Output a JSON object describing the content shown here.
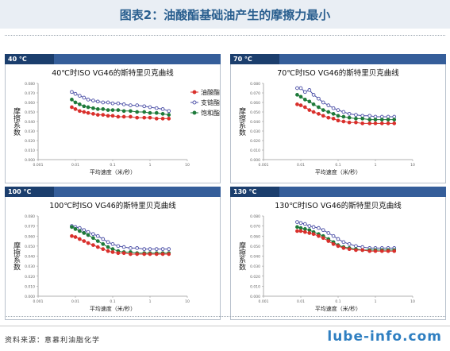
{
  "header": {
    "title": "图表2：油酸酯基础油产生的摩擦力最小"
  },
  "footer": {
    "source": "资料来源：意慕利油脂化学",
    "brand": "lube-info.com"
  },
  "colors": {
    "oleate": "#d9302c",
    "branched": "#4b4fa6",
    "saturated": "#1e7a3a"
  },
  "chart_data": [
    {
      "type": "line",
      "panel_label": "40 °C",
      "title": "40℃时ISO VG46的斯特里贝克曲线",
      "xlabel": "平均速度（米/秒）",
      "ylabel": "摩擦系数",
      "x_scale": "log",
      "xlim": [
        0.001,
        10
      ],
      "ylim": [
        0,
        0.08
      ],
      "x_ticks": [
        "0.001",
        "0.01",
        "0.1",
        "1",
        "10"
      ],
      "y_ticks": [
        "0.000",
        "0.010",
        "0.020",
        "0.030",
        "0.040",
        "0.050",
        "0.060",
        "0.070",
        "0.080"
      ],
      "legend": [
        "油酸酯",
        "支链酯",
        "饱和酯"
      ],
      "x": [
        0.008,
        0.01,
        0.013,
        0.017,
        0.022,
        0.03,
        0.04,
        0.055,
        0.075,
        0.1,
        0.14,
        0.2,
        0.3,
        0.45,
        0.7,
        1.0,
        1.5,
        2.2,
        3.2
      ],
      "series": [
        {
          "name": "支链酯",
          "color": "#4b4fa6",
          "values": [
            0.071,
            0.069,
            0.067,
            0.065,
            0.063,
            0.062,
            0.061,
            0.06,
            0.06,
            0.059,
            0.059,
            0.058,
            0.057,
            0.057,
            0.056,
            0.055,
            0.054,
            0.053,
            0.051
          ]
        },
        {
          "name": "饱和酯",
          "color": "#1e7a3a",
          "values": [
            0.063,
            0.06,
            0.058,
            0.056,
            0.055,
            0.054,
            0.053,
            0.053,
            0.052,
            0.052,
            0.052,
            0.051,
            0.051,
            0.05,
            0.05,
            0.049,
            0.049,
            0.048,
            0.047
          ]
        },
        {
          "name": "油酸酯",
          "color": "#d9302c",
          "values": [
            0.055,
            0.053,
            0.051,
            0.05,
            0.049,
            0.048,
            0.047,
            0.047,
            0.046,
            0.046,
            0.045,
            0.045,
            0.045,
            0.044,
            0.044,
            0.044,
            0.043,
            0.043,
            0.043
          ]
        }
      ]
    },
    {
      "type": "line",
      "panel_label": "70 °C",
      "title": "70℃时ISO VG46的斯特里贝克曲线",
      "xlabel": "平均速度（米/秒）",
      "ylabel": "摩擦系数",
      "x_scale": "log",
      "xlim": [
        0.001,
        10
      ],
      "ylim": [
        0,
        0.08
      ],
      "x_ticks": [
        "0.001",
        "0.01",
        "0.1",
        "1",
        "10"
      ],
      "y_ticks": [
        "0.000",
        "0.010",
        "0.020",
        "0.030",
        "0.040",
        "0.050",
        "0.060",
        "0.070",
        "0.080"
      ],
      "legend": [],
      "x": [
        0.008,
        0.01,
        0.013,
        0.017,
        0.022,
        0.03,
        0.04,
        0.055,
        0.075,
        0.1,
        0.14,
        0.2,
        0.3,
        0.45,
        0.7,
        1.0,
        1.5,
        2.2,
        3.2
      ],
      "series": [
        {
          "name": "支链酯",
          "color": "#4b4fa6",
          "values": [
            0.075,
            0.075,
            0.071,
            0.073,
            0.068,
            0.064,
            0.06,
            0.057,
            0.054,
            0.052,
            0.05,
            0.048,
            0.047,
            0.046,
            0.046,
            0.045,
            0.045,
            0.045,
            0.045
          ]
        },
        {
          "name": "饱和酯",
          "color": "#1e7a3a",
          "values": [
            0.068,
            0.066,
            0.063,
            0.061,
            0.058,
            0.055,
            0.052,
            0.05,
            0.048,
            0.046,
            0.045,
            0.044,
            0.043,
            0.043,
            0.042,
            0.042,
            0.042,
            0.042,
            0.042
          ]
        },
        {
          "name": "油酸酯",
          "color": "#d9302c",
          "values": [
            0.058,
            0.057,
            0.055,
            0.052,
            0.05,
            0.048,
            0.046,
            0.044,
            0.043,
            0.041,
            0.04,
            0.039,
            0.039,
            0.038,
            0.038,
            0.038,
            0.038,
            0.038,
            0.038
          ]
        }
      ]
    },
    {
      "type": "line",
      "panel_label": "100 °C",
      "title": "100℃时ISO VG46的斯特里贝克曲线",
      "xlabel": "平均速度（米/秒）",
      "ylabel": "摩擦系数",
      "x_scale": "log",
      "xlim": [
        0.001,
        10
      ],
      "ylim": [
        0,
        0.08
      ],
      "x_ticks": [
        "0.001",
        "0.01",
        "0.1",
        "1",
        "10"
      ],
      "y_ticks": [
        "0.000",
        "0.010",
        "0.020",
        "0.030",
        "0.040",
        "0.050",
        "0.060",
        "0.070",
        "0.080"
      ],
      "legend": [],
      "x": [
        0.008,
        0.01,
        0.013,
        0.017,
        0.022,
        0.03,
        0.04,
        0.055,
        0.075,
        0.1,
        0.14,
        0.2,
        0.3,
        0.45,
        0.7,
        1.0,
        1.5,
        2.2,
        3.2
      ],
      "series": [
        {
          "name": "支链酯",
          "color": "#4b4fa6",
          "values": [
            0.07,
            0.069,
            0.068,
            0.066,
            0.064,
            0.062,
            0.06,
            0.057,
            0.054,
            0.052,
            0.05,
            0.049,
            0.048,
            0.048,
            0.047,
            0.047,
            0.047,
            0.047,
            0.047
          ]
        },
        {
          "name": "饱和酯",
          "color": "#1e7a3a",
          "values": [
            0.069,
            0.067,
            0.065,
            0.063,
            0.061,
            0.058,
            0.055,
            0.052,
            0.049,
            0.047,
            0.045,
            0.044,
            0.044,
            0.043,
            0.043,
            0.043,
            0.043,
            0.043,
            0.043
          ]
        },
        {
          "name": "油酸酯",
          "color": "#d9302c",
          "values": [
            0.06,
            0.059,
            0.057,
            0.055,
            0.053,
            0.051,
            0.049,
            0.047,
            0.045,
            0.044,
            0.043,
            0.043,
            0.042,
            0.042,
            0.042,
            0.042,
            0.042,
            0.042,
            0.042
          ]
        }
      ]
    },
    {
      "type": "line",
      "panel_label": "130 °C",
      "title": "130℃时ISO VG46的斯特里贝克曲线",
      "xlabel": "平均速度（米/秒）",
      "ylabel": "摩擦系数",
      "x_scale": "log",
      "xlim": [
        0.001,
        10
      ],
      "ylim": [
        0,
        0.08
      ],
      "x_ticks": [
        "0.001",
        "0.01",
        "0.1",
        "1",
        "10"
      ],
      "y_ticks": [
        "0.000",
        "0.010",
        "0.020",
        "0.030",
        "0.040",
        "0.050",
        "0.060",
        "0.070",
        "0.080"
      ],
      "legend": [],
      "x": [
        0.008,
        0.01,
        0.013,
        0.017,
        0.022,
        0.03,
        0.04,
        0.055,
        0.075,
        0.1,
        0.14,
        0.2,
        0.3,
        0.45,
        0.7,
        1.0,
        1.5,
        2.2,
        3.2
      ],
      "series": [
        {
          "name": "支链酯",
          "color": "#4b4fa6",
          "values": [
            0.074,
            0.073,
            0.072,
            0.07,
            0.069,
            0.068,
            0.066,
            0.063,
            0.06,
            0.057,
            0.054,
            0.052,
            0.05,
            0.049,
            0.048,
            0.048,
            0.048,
            0.048,
            0.048
          ]
        },
        {
          "name": "饱和酯",
          "color": "#1e7a3a",
          "values": [
            0.069,
            0.068,
            0.067,
            0.066,
            0.064,
            0.062,
            0.06,
            0.057,
            0.054,
            0.051,
            0.049,
            0.048,
            0.047,
            0.046,
            0.046,
            0.046,
            0.046,
            0.046,
            0.046
          ]
        },
        {
          "name": "油酸酯",
          "color": "#d9302c",
          "values": [
            0.065,
            0.065,
            0.064,
            0.063,
            0.062,
            0.06,
            0.058,
            0.055,
            0.052,
            0.05,
            0.048,
            0.047,
            0.046,
            0.046,
            0.045,
            0.045,
            0.045,
            0.045,
            0.045
          ]
        }
      ]
    }
  ]
}
